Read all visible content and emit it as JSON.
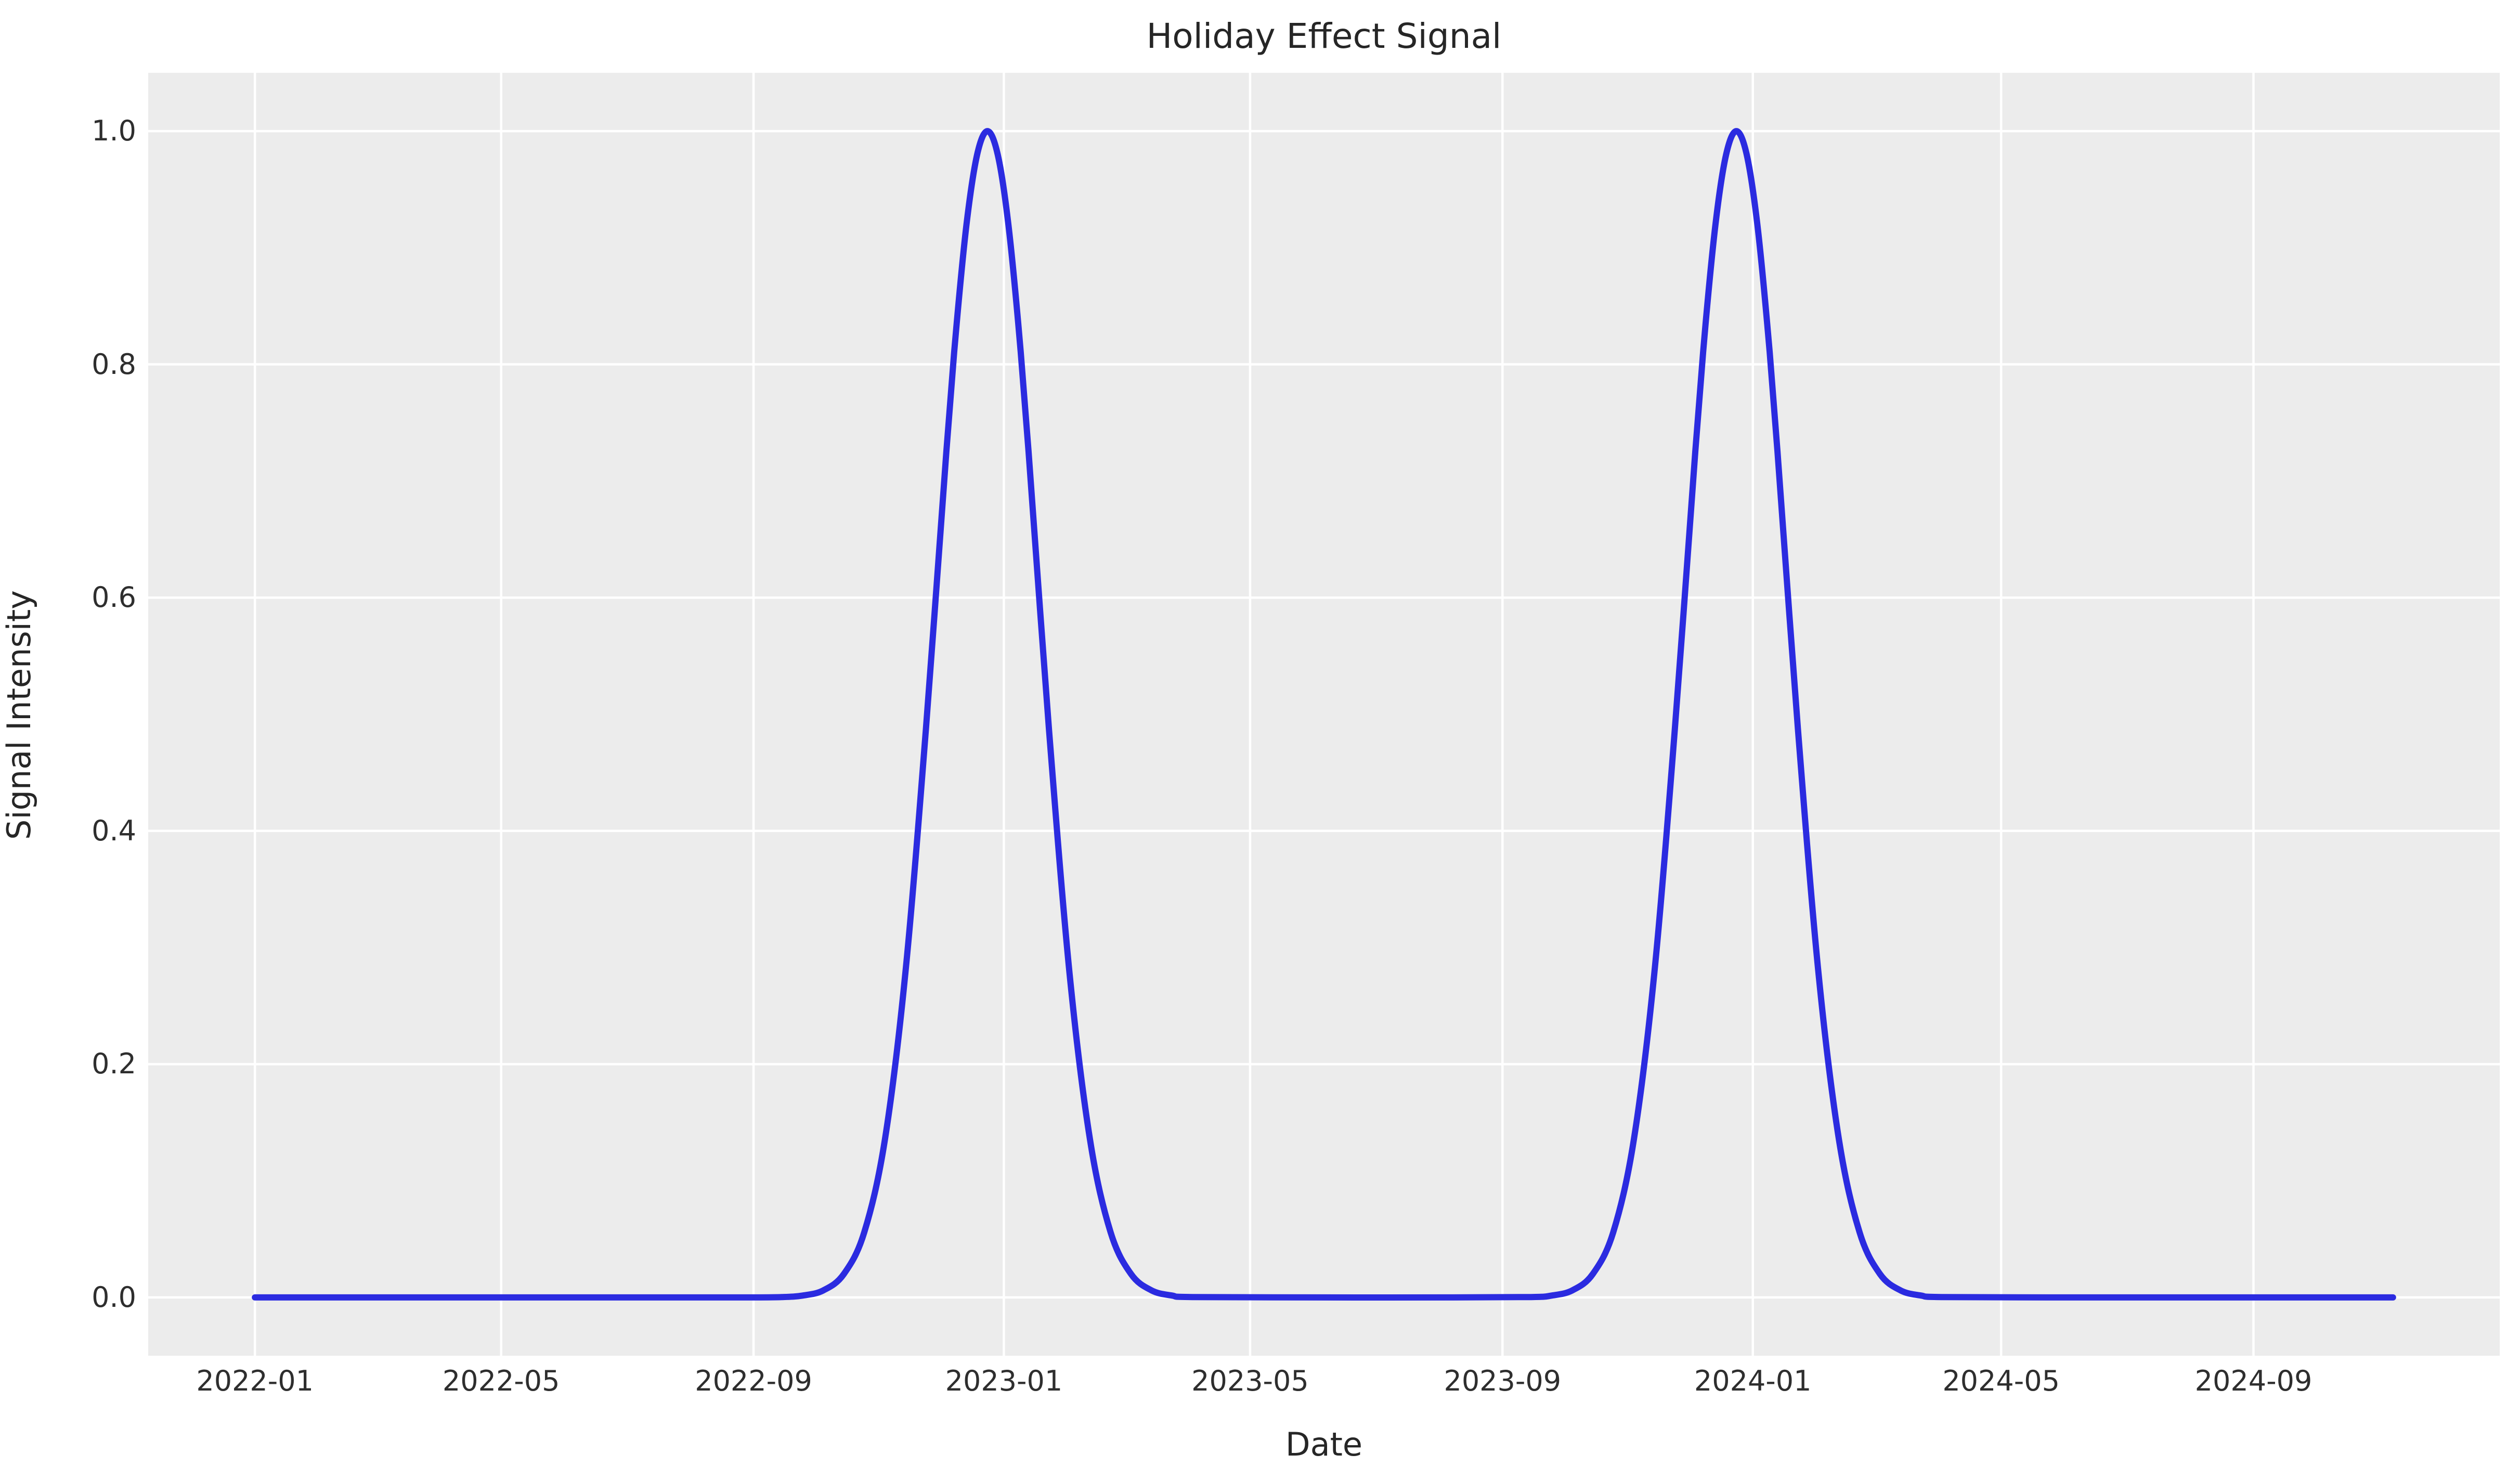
{
  "figure": {
    "background": "#ffffff",
    "plot_background": "#ececec",
    "grid_color": "#ffffff",
    "text_color": "#262626"
  },
  "chart_data": {
    "type": "line",
    "title": "Holiday Effect Signal",
    "xlabel": "Date",
    "ylabel": "Signal Intensity",
    "legend": "none",
    "grid": true,
    "plot_background": "#ececec",
    "grid_color": "#ffffff",
    "ylim": [
      -0.05,
      1.05
    ],
    "y_ticks": [
      {
        "label": "0.0",
        "value": 0.0
      },
      {
        "label": "0.2",
        "value": 0.2
      },
      {
        "label": "0.4",
        "value": 0.4
      },
      {
        "label": "0.6",
        "value": 0.6
      },
      {
        "label": "0.8",
        "value": 0.8
      },
      {
        "label": "1.0",
        "value": 1.0
      }
    ],
    "x_ticks": [
      {
        "label": "2022-01",
        "day": 0
      },
      {
        "label": "2022-05",
        "day": 120
      },
      {
        "label": "2022-09",
        "day": 243
      },
      {
        "label": "2023-01",
        "day": 365
      },
      {
        "label": "2023-05",
        "day": 485
      },
      {
        "label": "2023-09",
        "day": 608
      },
      {
        "label": "2024-01",
        "day": 730
      },
      {
        "label": "2024-05",
        "day": 851
      },
      {
        "label": "2024-09",
        "day": 974
      }
    ],
    "x_range_days": [
      -52,
      1094
    ],
    "series": [
      {
        "name": "Holiday Effect Signal",
        "color": "#2b2be0",
        "line_width": 12,
        "start_date": "2022-01-01",
        "end_date": "2024-11-08",
        "sigma_days": 25,
        "peaks": [
          {
            "date": "2022-12-24",
            "day": 357,
            "height": 1.0
          },
          {
            "date": "2023-12-24",
            "day": 722,
            "height": 1.0
          }
        ],
        "points": [
          [
            0,
            0
          ],
          [
            60,
            0
          ],
          [
            120,
            0
          ],
          [
            180,
            0
          ],
          [
            240,
            0
          ],
          [
            257,
            0.0003
          ],
          [
            267,
            0.0016
          ],
          [
            277,
            0.006
          ],
          [
            287,
            0.02
          ],
          [
            297,
            0.056
          ],
          [
            307,
            0.135
          ],
          [
            317,
            0.278
          ],
          [
            327,
            0.487
          ],
          [
            337,
            0.726
          ],
          [
            342,
            0.835
          ],
          [
            347,
            0.923
          ],
          [
            352,
            0.98
          ],
          [
            357,
            1.0
          ],
          [
            362,
            0.98
          ],
          [
            367,
            0.923
          ],
          [
            372,
            0.835
          ],
          [
            377,
            0.726
          ],
          [
            387,
            0.487
          ],
          [
            397,
            0.278
          ],
          [
            407,
            0.135
          ],
          [
            417,
            0.056
          ],
          [
            427,
            0.02
          ],
          [
            437,
            0.006
          ],
          [
            447,
            0.0016
          ],
          [
            457,
            0.0003
          ],
          [
            520,
            0
          ],
          [
            580,
            0
          ],
          [
            622,
            0.0003
          ],
          [
            632,
            0.0016
          ],
          [
            642,
            0.006
          ],
          [
            652,
            0.02
          ],
          [
            662,
            0.056
          ],
          [
            672,
            0.135
          ],
          [
            682,
            0.278
          ],
          [
            692,
            0.487
          ],
          [
            702,
            0.726
          ],
          [
            707,
            0.835
          ],
          [
            712,
            0.923
          ],
          [
            717,
            0.98
          ],
          [
            722,
            1.0
          ],
          [
            727,
            0.98
          ],
          [
            732,
            0.923
          ],
          [
            737,
            0.835
          ],
          [
            742,
            0.726
          ],
          [
            752,
            0.487
          ],
          [
            762,
            0.278
          ],
          [
            772,
            0.135
          ],
          [
            782,
            0.056
          ],
          [
            792,
            0.02
          ],
          [
            802,
            0.006
          ],
          [
            812,
            0.0016
          ],
          [
            822,
            0.0003
          ],
          [
            880,
            0
          ],
          [
            940,
            0
          ],
          [
            1000,
            0
          ],
          [
            1042,
            0
          ]
        ]
      }
    ]
  }
}
